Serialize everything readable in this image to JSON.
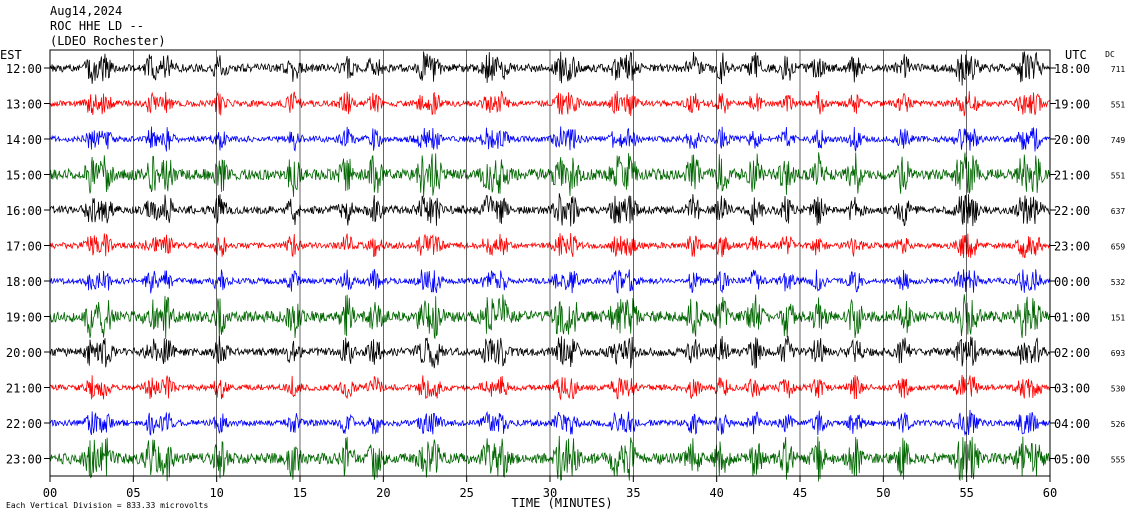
{
  "header": {
    "date": "Aug14,2024",
    "station": "ROC HHE LD --",
    "network": "(LDEO Rochester)"
  },
  "chart_data": {
    "type": "line",
    "left_axis_label": "EST",
    "right_axis_label": "UTC",
    "dc_label": "DC",
    "xlabel": "TIME (MINUTES)",
    "xlim": [
      0,
      60
    ],
    "x_ticks": [
      "00",
      "05",
      "10",
      "15",
      "20",
      "25",
      "30",
      "35",
      "40",
      "45",
      "50",
      "55",
      "60"
    ],
    "scale_note": "Each Vertical Division = 833.33 microvolts",
    "trace_colors": [
      "#000000",
      "#ff0000",
      "#0000ff",
      "#006600"
    ],
    "rows": [
      {
        "est": "12:00",
        "utc": "18:00",
        "dc": "711"
      },
      {
        "est": "13:00",
        "utc": "19:00",
        "dc": "551"
      },
      {
        "est": "14:00",
        "utc": "20:00",
        "dc": "749"
      },
      {
        "est": "15:00",
        "utc": "21:00",
        "dc": "551"
      },
      {
        "est": "16:00",
        "utc": "22:00",
        "dc": "637"
      },
      {
        "est": "17:00",
        "utc": "23:00",
        "dc": "659"
      },
      {
        "est": "18:00",
        "utc": "00:00",
        "dc": "532"
      },
      {
        "est": "19:00",
        "utc": "01:00",
        "dc": "151"
      },
      {
        "est": "20:00",
        "utc": "02:00",
        "dc": "693"
      },
      {
        "est": "21:00",
        "utc": "03:00",
        "dc": "530"
      },
      {
        "est": "22:00",
        "utc": "04:00",
        "dc": "526"
      },
      {
        "est": "23:00",
        "utc": "05:00",
        "dc": "555"
      }
    ]
  }
}
